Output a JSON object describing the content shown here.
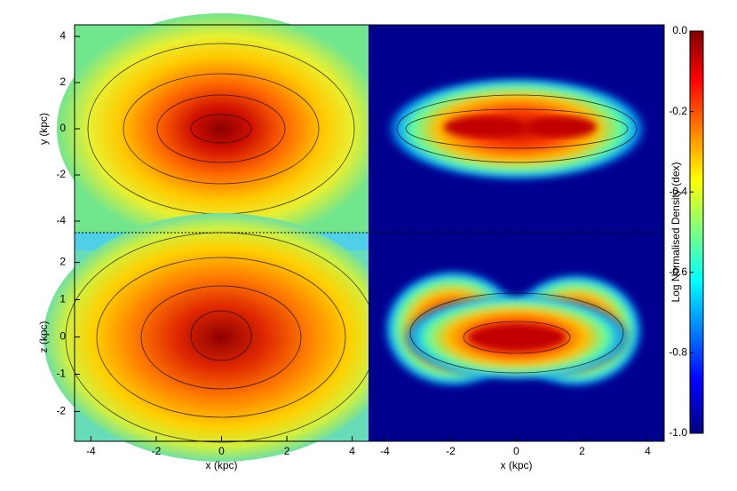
{
  "chart_data": [
    {
      "type": "heatmap",
      "xlim": [
        -4.5,
        4.5
      ],
      "ylim": [
        -4.5,
        4.5
      ],
      "yticks": [
        -4,
        -2,
        0,
        2,
        4
      ],
      "ylabel": "y (kpc)"
    },
    {
      "type": "heatmap",
      "xlim": [
        -4.5,
        4.5
      ],
      "ylim": [
        -4.5,
        4.5
      ]
    },
    {
      "type": "heatmap",
      "xlim": [
        -4.5,
        4.5
      ],
      "ylim": [
        -2.8,
        2.8
      ],
      "xticks": [
        -4,
        -2,
        0,
        2,
        4
      ],
      "yticks": [
        -2,
        -1,
        0,
        1,
        2
      ],
      "xlabel": "x (kpc)",
      "ylabel": "z (kpc)"
    },
    {
      "type": "heatmap",
      "xlim": [
        -4.5,
        4.5
      ],
      "ylim": [
        -2.8,
        2.8
      ],
      "xticks": [
        -4,
        -2,
        0,
        2,
        4
      ],
      "xlabel": "x (kpc)"
    },
    {
      "type": "colorbar",
      "label": "Log Normalised Density (dex)",
      "ylim": [
        -1,
        0
      ],
      "yticks": [
        {
          "value": 0,
          "label": "0.0"
        },
        -0.2,
        -0.4,
        -0.6,
        -0.8,
        {
          "value": -1,
          "label": "-1.0"
        }
      ]
    }
  ]
}
